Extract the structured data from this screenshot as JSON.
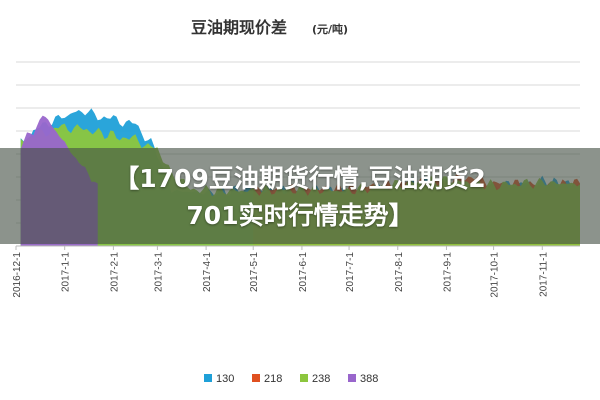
{
  "chart_data": {
    "type": "area",
    "title": "豆油期现价差",
    "title_unit": "(元/吨)",
    "x_tick_labels": [
      "2016-12-1",
      "2017-1-1",
      "2017-2-1",
      "2017-3-1",
      "2017-4-1",
      "2017-5-1",
      "2017-6-1",
      "2017-7-1",
      "2017-8-1",
      "2017-9-1",
      "2017-10-1",
      "2017-11-1"
    ],
    "x_range": [
      "2016-12-01",
      "2017-11-25"
    ],
    "ylim": [
      0,
      1000
    ],
    "gridlines": 8,
    "legend_position": "bottom",
    "series": [
      {
        "name": "130",
        "color": "#1fa0d8",
        "points": [
          [
            "2016-12-04",
            560
          ],
          [
            "2016-12-20",
            670
          ],
          [
            "2017-01-01",
            700
          ],
          [
            "2017-01-10",
            740
          ],
          [
            "2017-01-20",
            710
          ],
          [
            "2017-02-01",
            690
          ],
          [
            "2017-02-15",
            660
          ],
          [
            "2017-02-25",
            560
          ],
          [
            "2017-03-05",
            420
          ],
          [
            "2017-03-10",
            300
          ],
          [
            "2017-04-01",
            290
          ],
          [
            "2017-05-01",
            310
          ],
          [
            "2017-06-01",
            300
          ],
          [
            "2017-07-01",
            300
          ],
          [
            "2017-08-01",
            330
          ],
          [
            "2017-08-20",
            360
          ],
          [
            "2017-09-01",
            330
          ],
          [
            "2017-10-01",
            320
          ],
          [
            "2017-11-01",
            350
          ],
          [
            "2017-11-25",
            330
          ]
        ]
      },
      {
        "name": "218",
        "color": "#e05020",
        "points": [
          [
            "2017-05-01",
            300
          ],
          [
            "2017-06-01",
            310
          ],
          [
            "2017-07-01",
            310
          ],
          [
            "2017-08-01",
            340
          ],
          [
            "2017-09-01",
            350
          ],
          [
            "2017-09-15",
            380
          ],
          [
            "2017-10-01",
            340
          ],
          [
            "2017-11-01",
            330
          ],
          [
            "2017-11-25",
            340
          ]
        ]
      },
      {
        "name": "238",
        "color": "#8cc63e",
        "points": [
          [
            "2016-12-04",
            580
          ],
          [
            "2016-12-20",
            620
          ],
          [
            "2017-01-01",
            650
          ],
          [
            "2017-01-15",
            630
          ],
          [
            "2017-02-01",
            600
          ],
          [
            "2017-02-15",
            580
          ],
          [
            "2017-03-01",
            520
          ],
          [
            "2017-03-10",
            400
          ],
          [
            "2017-03-20",
            320
          ],
          [
            "2017-04-01",
            300
          ],
          [
            "2017-05-01",
            300
          ],
          [
            "2017-06-01",
            305
          ],
          [
            "2017-07-01",
            300
          ],
          [
            "2017-08-01",
            335
          ],
          [
            "2017-09-01",
            360
          ],
          [
            "2017-10-01",
            330
          ],
          [
            "2017-11-01",
            345
          ],
          [
            "2017-11-25",
            335
          ]
        ]
      },
      {
        "name": "388",
        "color": "#9966cc",
        "points": [
          [
            "2016-12-04",
            550
          ],
          [
            "2016-12-12",
            620
          ],
          [
            "2016-12-18",
            720
          ],
          [
            "2016-12-25",
            640
          ],
          [
            "2017-01-01",
            560
          ],
          [
            "2017-01-10",
            450
          ],
          [
            "2017-01-18",
            380
          ],
          [
            "2017-01-22",
            340
          ]
        ]
      }
    ]
  },
  "overlay": {
    "line1": "【1709豆油期货行情,豆油期货2",
    "line2": "701实时行情走势】"
  }
}
